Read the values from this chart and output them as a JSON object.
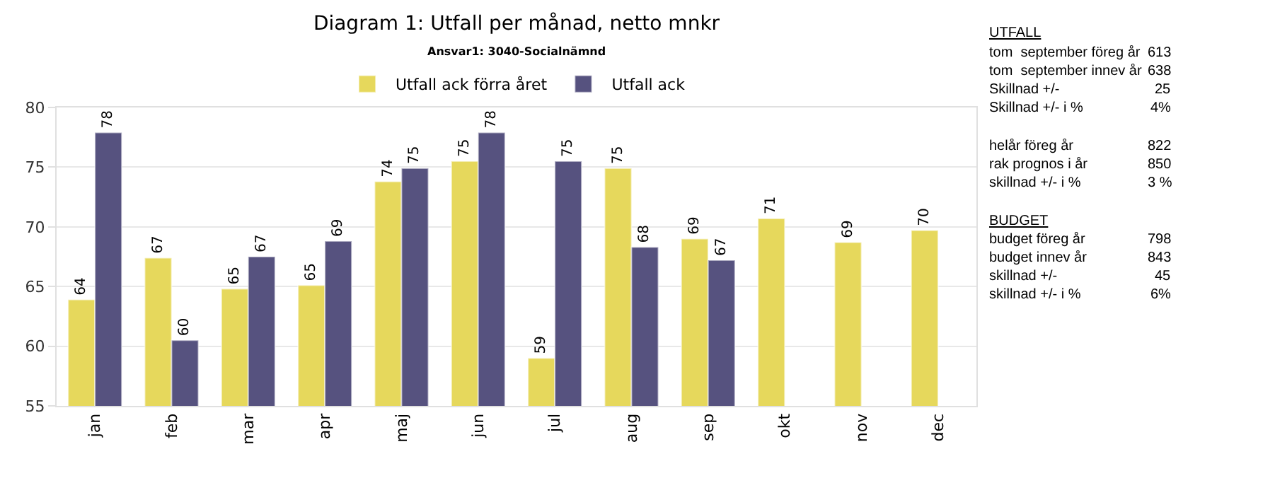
{
  "chart_data": {
    "type": "bar",
    "title": "Diagram 1: Utfall per månad, netto mnkr",
    "subtitle": "Ansvar1: 3040-Socialnämnd",
    "categories": [
      "jan",
      "feb",
      "mar",
      "apr",
      "maj",
      "jun",
      "jul",
      "aug",
      "sep",
      "okt",
      "nov",
      "dec"
    ],
    "series": [
      {
        "name": "Utfall ack förra året",
        "color": "#e6d85c",
        "values": [
          63.9,
          67.4,
          64.8,
          65.1,
          73.8,
          75.5,
          59.0,
          74.9,
          69.0,
          70.7,
          68.7,
          69.7
        ],
        "value_labels": [
          "64",
          "67",
          "65",
          "65",
          "74",
          "75",
          "59",
          "75",
          "69",
          "71",
          "69",
          "70"
        ]
      },
      {
        "name": "Utfall ack",
        "color": "#56527f",
        "values": [
          77.9,
          60.5,
          67.5,
          68.8,
          74.9,
          77.9,
          75.5,
          68.3,
          67.2,
          null,
          null,
          null
        ],
        "value_labels": [
          "78",
          "60",
          "67",
          "69",
          "75",
          "78",
          "75",
          "68",
          "67",
          null,
          null,
          null
        ]
      }
    ],
    "ylim": [
      55,
      80
    ],
    "yticks": [
      55,
      60,
      65,
      70,
      75,
      80
    ],
    "grid": "y",
    "legend": "top",
    "annotations": [
      "UTFALL",
      "tom  september föreg år",
      "613",
      "tom  september innev år",
      "638",
      "Skillnad +/-",
      "25",
      "Skillnad +/- i %",
      "4%",
      "helår föreg år",
      "822",
      "rak prognos i år",
      "850",
      "skillnad +/- i %",
      "3 %",
      "BUDGET",
      "budget föreg år",
      "798",
      "budget innev år",
      "843",
      "skillnad +/-",
      "45",
      "skillnad +/- i %",
      "6%"
    ]
  }
}
